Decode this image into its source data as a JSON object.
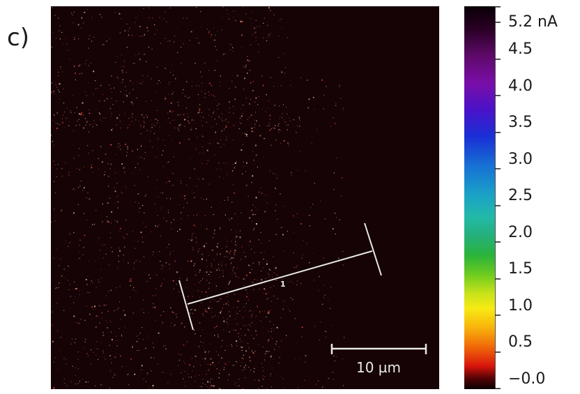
{
  "panel_label": "c)",
  "map": {
    "scale_bar_label": "10 µm",
    "profile_marker": "1"
  },
  "colorbar": {
    "unit": "nA",
    "range": [
      -0.0,
      5.2
    ],
    "ticks": [
      {
        "value": 5.2,
        "label": "5.2 nA"
      },
      {
        "value": 4.5,
        "label": "4.5"
      },
      {
        "value": 4.0,
        "label": "4.0"
      },
      {
        "value": 3.5,
        "label": "3.5"
      },
      {
        "value": 3.0,
        "label": "3.0"
      },
      {
        "value": 2.5,
        "label": "2.5"
      },
      {
        "value": 2.0,
        "label": "2.0"
      },
      {
        "value": 1.5,
        "label": "1.5"
      },
      {
        "value": 1.0,
        "label": "1.0"
      },
      {
        "value": 0.5,
        "label": "0.5"
      },
      {
        "value": 0.0,
        "label": "−0.0"
      }
    ],
    "colors": {
      "low": "#0a0002",
      "mid": "#2ab33b",
      "high": "#090006"
    }
  },
  "colors": {
    "map_background": "#150306",
    "speckle": "#e0a890",
    "overlay_line": "#e8e8e8"
  }
}
